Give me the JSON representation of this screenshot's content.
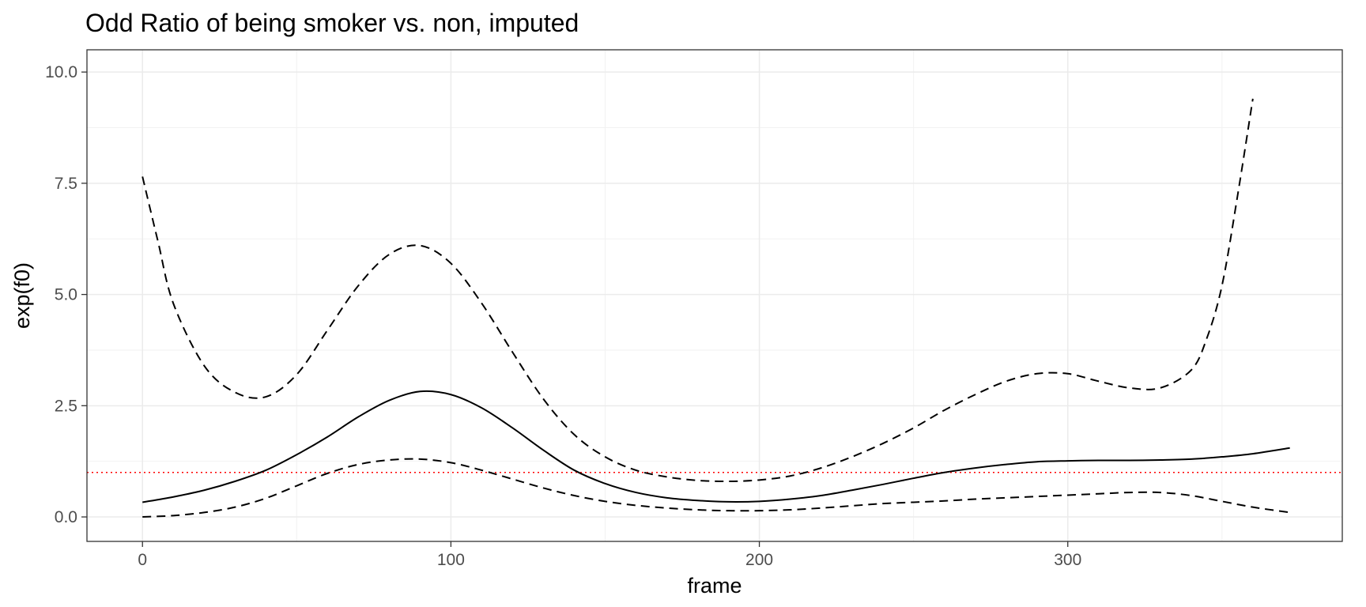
{
  "chart_data": {
    "type": "line",
    "title": "Odd Ratio of being smoker vs. non, imputed",
    "xlabel": "frame",
    "ylabel": "exp(f0)",
    "xlim": [
      -18,
      389
    ],
    "ylim": [
      -0.55,
      10.5
    ],
    "x_ticks": [
      0,
      100,
      200,
      300
    ],
    "x_tick_labels": [
      "0",
      "100",
      "200",
      "300"
    ],
    "x_minor_ticks": [
      50,
      150,
      250,
      350
    ],
    "y_ticks": [
      0,
      2.5,
      5,
      7.5,
      10
    ],
    "y_tick_labels": [
      "0.0",
      "2.5",
      "5.0",
      "7.5",
      "10.0"
    ],
    "y_minor_ticks": [
      1.25,
      3.75,
      6.25,
      8.75
    ],
    "grid": true,
    "legend": "none",
    "reference_line": {
      "y": 1,
      "color": "#ff0000",
      "style": "dotted"
    },
    "series": [
      {
        "role": "estimate",
        "style": "solid",
        "color": "#000000",
        "x": [
          0,
          10,
          20,
          30,
          40,
          50,
          60,
          70,
          80,
          90,
          100,
          110,
          120,
          130,
          140,
          150,
          160,
          170,
          180,
          190,
          200,
          210,
          220,
          230,
          240,
          250,
          260,
          270,
          280,
          290,
          300,
          310,
          320,
          330,
          340,
          350,
          360,
          372
        ],
        "y": [
          0.33,
          0.45,
          0.6,
          0.8,
          1.05,
          1.4,
          1.8,
          2.25,
          2.62,
          2.82,
          2.75,
          2.45,
          2.0,
          1.5,
          1.05,
          0.75,
          0.55,
          0.43,
          0.37,
          0.34,
          0.35,
          0.4,
          0.48,
          0.6,
          0.73,
          0.87,
          1.0,
          1.1,
          1.18,
          1.24,
          1.26,
          1.27,
          1.27,
          1.28,
          1.3,
          1.35,
          1.42,
          1.55
        ]
      },
      {
        "role": "upper",
        "style": "dashed",
        "color": "#000000",
        "x": [
          0,
          5,
          10,
          20,
          30,
          40,
          50,
          60,
          70,
          80,
          90,
          100,
          110,
          120,
          130,
          140,
          150,
          160,
          170,
          180,
          190,
          200,
          210,
          220,
          230,
          240,
          250,
          260,
          270,
          280,
          290,
          300,
          310,
          320,
          330,
          340,
          345,
          350,
          355,
          360
        ],
        "y": [
          7.65,
          6.2,
          4.8,
          3.4,
          2.8,
          2.7,
          3.2,
          4.2,
          5.2,
          5.9,
          6.1,
          5.7,
          4.8,
          3.7,
          2.65,
          1.85,
          1.35,
          1.05,
          0.9,
          0.82,
          0.8,
          0.83,
          0.92,
          1.1,
          1.35,
          1.65,
          2.0,
          2.4,
          2.75,
          3.05,
          3.22,
          3.22,
          3.05,
          2.9,
          2.9,
          3.3,
          4.0,
          5.2,
          7.2,
          9.4
        ]
      },
      {
        "role": "lower",
        "style": "dashed",
        "color": "#000000",
        "x": [
          0,
          10,
          20,
          30,
          40,
          50,
          60,
          70,
          80,
          90,
          100,
          110,
          120,
          130,
          140,
          150,
          160,
          170,
          180,
          190,
          200,
          210,
          220,
          230,
          240,
          250,
          260,
          270,
          280,
          290,
          300,
          310,
          320,
          330,
          340,
          350,
          360,
          372
        ],
        "y": [
          0.0,
          0.03,
          0.1,
          0.22,
          0.42,
          0.7,
          0.98,
          1.18,
          1.28,
          1.3,
          1.22,
          1.05,
          0.85,
          0.65,
          0.48,
          0.35,
          0.26,
          0.2,
          0.16,
          0.14,
          0.14,
          0.16,
          0.2,
          0.25,
          0.3,
          0.33,
          0.36,
          0.4,
          0.43,
          0.46,
          0.49,
          0.52,
          0.55,
          0.55,
          0.48,
          0.35,
          0.22,
          0.1
        ]
      }
    ]
  }
}
